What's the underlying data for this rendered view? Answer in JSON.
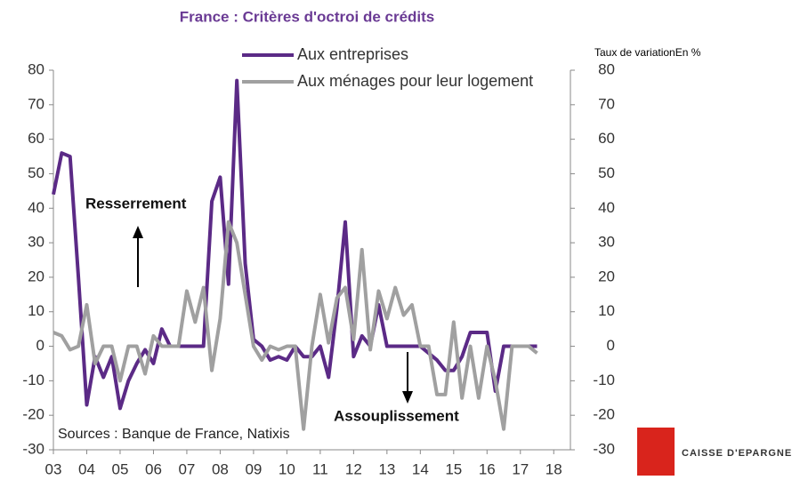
{
  "chart_data": {
    "type": "line",
    "title": "France : Critères d'octroi de crédits",
    "y2_label": "Taux de variationEn %",
    "annotations": [
      "Resserrement",
      "Assouplissement",
      "Sources : Banque de France, Natixis"
    ],
    "logo": "CAISSE D'EPARGNE",
    "x": [
      2003,
      2003.25,
      2003.5,
      2003.75,
      2004,
      2004.25,
      2004.5,
      2004.75,
      2005,
      2005.25,
      2005.5,
      2005.75,
      2006,
      2006.25,
      2006.5,
      2006.75,
      2007,
      2007.25,
      2007.5,
      2007.75,
      2008,
      2008.25,
      2008.5,
      2008.75,
      2009,
      2009.25,
      2009.5,
      2009.75,
      2010,
      2010.25,
      2010.5,
      2010.75,
      2011,
      2011.25,
      2011.5,
      2011.75,
      2012,
      2012.25,
      2012.5,
      2012.75,
      2013,
      2013.25,
      2013.5,
      2013.75,
      2014,
      2014.25,
      2014.5,
      2014.75,
      2015,
      2015.25,
      2015.5,
      2015.75,
      2016,
      2016.25,
      2016.5,
      2016.75,
      2017,
      2017.25,
      2017.5
    ],
    "series": [
      {
        "name": "Aux entreprises",
        "color": "#5b2a86",
        "values": [
          44,
          56,
          55,
          20,
          -17,
          -3,
          -9,
          -3,
          -18,
          -10,
          -5,
          -1,
          -5,
          5,
          0,
          0,
          0,
          0,
          0,
          42,
          49,
          18,
          77,
          24,
          2,
          0,
          -4,
          -3,
          -4,
          0,
          -3,
          -3,
          0,
          -9,
          11,
          36,
          -3,
          3,
          0,
          12,
          0,
          0,
          0,
          0,
          0,
          -2,
          -4,
          -7,
          -7,
          -3,
          4,
          4,
          4,
          -13,
          0,
          0,
          0,
          0,
          0
        ]
      },
      {
        "name": "Aux ménages pour leur logement",
        "color": "#a0a0a0",
        "values": [
          4,
          3,
          -1,
          0,
          12,
          -5,
          0,
          0,
          -10,
          0,
          0,
          -8,
          3,
          0,
          0,
          0,
          16,
          7,
          17,
          -7,
          8,
          36,
          30,
          15,
          0,
          -4,
          0,
          -1,
          0,
          0,
          -24,
          0,
          15,
          1,
          14,
          17,
          2,
          28,
          -1,
          16,
          8,
          17,
          9,
          12,
          0,
          0,
          -14,
          -14,
          7,
          -15,
          0,
          -15,
          0,
          -10,
          -24,
          0,
          0,
          0,
          -2
        ]
      }
    ],
    "xlim": [
      2003,
      2018.5
    ],
    "xticks": [
      {
        "value": 2003,
        "label": "03"
      },
      {
        "value": 2004,
        "label": "04"
      },
      {
        "value": 2005,
        "label": "05"
      },
      {
        "value": 2006,
        "label": "06"
      },
      {
        "value": 2007,
        "label": "07"
      },
      {
        "value": 2008,
        "label": "08"
      },
      {
        "value": 2009,
        "label": "09"
      },
      {
        "value": 2010,
        "label": "10"
      },
      {
        "value": 2011,
        "label": "11"
      },
      {
        "value": 2012,
        "label": "12"
      },
      {
        "value": 2013,
        "label": "13"
      },
      {
        "value": 2014,
        "label": "14"
      },
      {
        "value": 2015,
        "label": "15"
      },
      {
        "value": 2016,
        "label": "16"
      },
      {
        "value": 2017,
        "label": "17"
      },
      {
        "value": 2018,
        "label": "18"
      }
    ],
    "ylim": [
      -30,
      80
    ],
    "yticks": [
      -30,
      -20,
      -10,
      0,
      10,
      20,
      30,
      40,
      50,
      60,
      70,
      80
    ],
    "y2lim": [
      -30,
      80
    ],
    "y2ticks": [
      -30,
      -20,
      -10,
      0,
      10,
      20,
      30,
      40,
      50,
      60,
      70,
      80
    ]
  }
}
